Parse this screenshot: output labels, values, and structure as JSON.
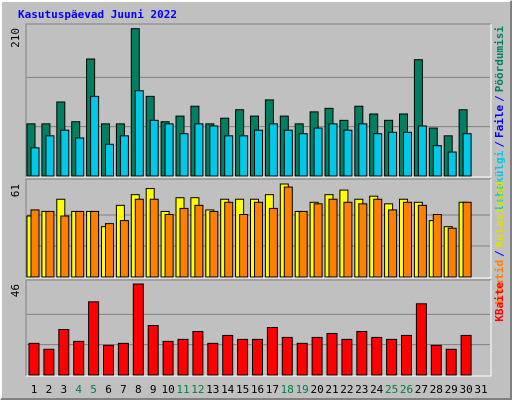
{
  "title": "Kasutuspäevad Juuni 2022",
  "categories": [
    "1",
    "2",
    "3",
    "4",
    "5",
    "6",
    "7",
    "8",
    "9",
    "10",
    "11",
    "12",
    "13",
    "14",
    "15",
    "16",
    "17",
    "18",
    "19",
    "20",
    "21",
    "22",
    "23",
    "24",
    "25",
    "26",
    "27",
    "28",
    "29",
    "30",
    "31"
  ],
  "weekend_days": [
    4,
    5,
    11,
    12,
    18,
    19,
    25,
    26
  ],
  "weekend_color": "#008040",
  "legend_separator": "/",
  "chart_data": [
    {
      "type": "bar",
      "ylim": [
        0,
        210
      ],
      "yticks": [
        210
      ],
      "grid_lines": [
        70,
        140
      ],
      "legend": [
        {
          "text": "Lehekülgi",
          "color": "#00c8e8"
        },
        {
          "text": "Faile",
          "color": "#0000ff"
        },
        {
          "text": "Pöördumisi",
          "color": "#008060"
        }
      ],
      "series": [
        {
          "color": "#008060",
          "values": [
            74,
            74,
            105,
            77,
            166,
            74,
            74,
            209,
            113,
            77,
            85,
            99,
            74,
            82,
            94,
            85,
            108,
            85,
            74,
            91,
            96,
            79,
            99,
            88,
            79,
            88,
            165,
            68,
            57,
            94,
            null
          ]
        },
        {
          "color": "#00c8e8",
          "values": [
            40,
            57,
            65,
            54,
            113,
            45,
            57,
            121,
            79,
            74,
            60,
            74,
            71,
            57,
            57,
            65,
            74,
            65,
            60,
            68,
            74,
            65,
            74,
            60,
            62,
            62,
            71,
            43,
            34,
            60,
            null
          ]
        }
      ]
    },
    {
      "type": "bar",
      "ylim": [
        0,
        61
      ],
      "yticks": [
        61
      ],
      "grid_lines": [
        20.33,
        40.67
      ],
      "legend": [
        {
          "text": "Arvutid",
          "color": "#ff8000"
        },
        {
          "text": "Külastused",
          "color": "#e0e000"
        }
      ],
      "series": [
        {
          "color": "#ffff00",
          "values": [
            40,
            43,
            51,
            43,
            43,
            33,
            47,
            54,
            58,
            43,
            52,
            52,
            44,
            51,
            51,
            51,
            54,
            61,
            43,
            49,
            54,
            57,
            51,
            53,
            48,
            51,
            49,
            37,
            33,
            49,
            null
          ]
        },
        {
          "color": "#ff8000",
          "values": [
            44,
            43,
            40,
            43,
            43,
            35,
            37,
            51,
            51,
            41,
            45,
            47,
            43,
            49,
            41,
            49,
            45,
            59,
            43,
            48,
            51,
            49,
            48,
            51,
            44,
            49,
            47,
            41,
            32,
            49,
            null
          ]
        }
      ]
    },
    {
      "type": "bar",
      "ylim": [
        0,
        46
      ],
      "yticks": [
        46
      ],
      "grid_lines": [
        15.33,
        30.67
      ],
      "legend": [
        {
          "text": "KBaite",
          "color": "#ff0000"
        }
      ],
      "series": [
        {
          "color": "#ff0000",
          "values": [
            16,
            13,
            23,
            17,
            37,
            15,
            16,
            46,
            25,
            17,
            18,
            22,
            16,
            20,
            18,
            18,
            24,
            19,
            16,
            19,
            21,
            18,
            22,
            19,
            18,
            20,
            36,
            15,
            13,
            20,
            null
          ]
        }
      ]
    }
  ]
}
